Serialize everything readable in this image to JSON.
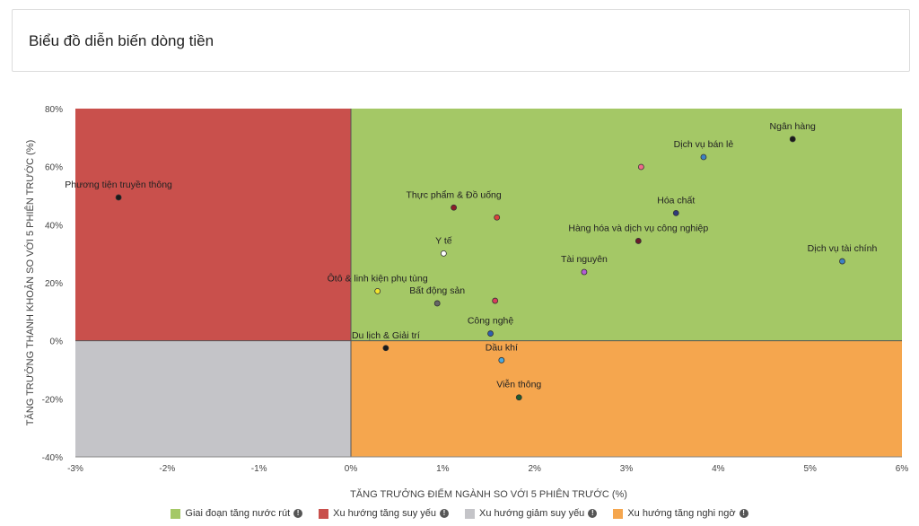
{
  "header": {
    "title": "Biểu đồ diễn biến dòng tiền"
  },
  "chart_data": {
    "type": "scatter",
    "xlabel": "TĂNG TRƯỞNG ĐIỂM NGÀNH SO VỚI 5 PHIÊN TRƯỚC (%)",
    "ylabel": "TĂNG TRƯỞNG THANH KHOẢN SO VỚI 5 PHIÊN TRƯỚC (%)",
    "xlim": [
      -3,
      6
    ],
    "ylim": [
      -40,
      80
    ],
    "x_ticks": [
      -3,
      -2,
      -1,
      0,
      1,
      2,
      3,
      4,
      5,
      6
    ],
    "y_ticks": [
      -40,
      -20,
      0,
      20,
      40,
      60,
      80
    ],
    "x_tick_labels": [
      "-3%",
      "-2%",
      "-1%",
      "0%",
      "1%",
      "2%",
      "3%",
      "4%",
      "5%",
      "6%"
    ],
    "y_tick_labels": [
      "-40%",
      "-20%",
      "0%",
      "20%",
      "40%",
      "60%",
      "80%"
    ],
    "quadrants": [
      {
        "name": "Giai đoạn tăng nước rút",
        "color": "#a4c866",
        "x_range": [
          0,
          6
        ],
        "y_range": [
          0,
          80
        ]
      },
      {
        "name": "Xu hướng tăng suy yếu",
        "color": "#c9504c",
        "x_range": [
          -3,
          0
        ],
        "y_range": [
          0,
          80
        ]
      },
      {
        "name": "Xu hướng giảm suy yếu",
        "color": "#c4c4c8",
        "x_range": [
          -3,
          0
        ],
        "y_range": [
          -40,
          0
        ]
      },
      {
        "name": "Xu hướng tăng nghi ngờ",
        "color": "#f5a64e",
        "x_range": [
          0,
          6
        ],
        "y_range": [
          -40,
          0
        ]
      }
    ],
    "points": [
      {
        "label": "Ngân hàng",
        "x": 4.81,
        "y": 69.5,
        "color": "#1a1a1a"
      },
      {
        "label": "Dịch vụ bán lẻ",
        "x": 3.84,
        "y": 63.3,
        "color": "#3d82c4"
      },
      {
        "label": "",
        "x": 3.16,
        "y": 59.9,
        "color": "#f06a8a"
      },
      {
        "label": "Phương tiện truyền thông",
        "x": -2.53,
        "y": 49.4,
        "color": "#1a1a1a"
      },
      {
        "label": "Thực phẩm & Đồ uống",
        "x": 1.12,
        "y": 45.9,
        "color": "#8b1c2a"
      },
      {
        "label": "",
        "x": 1.59,
        "y": 42.5,
        "color": "#d9443c"
      },
      {
        "label": "Hóa chất",
        "x": 3.54,
        "y": 44.0,
        "color": "#2f3a7a"
      },
      {
        "label": "Hàng hóa và dịch vụ công nghiệp",
        "x": 3.13,
        "y": 34.4,
        "color": "#6a1a2a"
      },
      {
        "label": "Y tế",
        "x": 1.01,
        "y": 30.1,
        "color": "#ffffff"
      },
      {
        "label": "Dịch vụ tài chính",
        "x": 5.35,
        "y": 27.4,
        "color": "#3d82c4"
      },
      {
        "label": "Tài nguyên",
        "x": 2.54,
        "y": 23.7,
        "color": "#b45cd6"
      },
      {
        "label": "Ôtô & linh kiện phụ tùng",
        "x": 0.29,
        "y": 17.1,
        "color": "#f2e52e"
      },
      {
        "label": "",
        "x": 1.57,
        "y": 13.8,
        "color": "#d93c5c"
      },
      {
        "label": "Bất động sản",
        "x": 0.94,
        "y": 12.9,
        "color": "#666666"
      },
      {
        "label": "Công nghệ",
        "x": 1.52,
        "y": 2.5,
        "color": "#2f5fb0"
      },
      {
        "label": "Du lịch & Giải trí",
        "x": 0.38,
        "y": -2.5,
        "color": "#1a1a1a"
      },
      {
        "label": "Dầu khí",
        "x": 1.64,
        "y": -6.7,
        "color": "#4aa8e0"
      },
      {
        "label": "Viễn thông",
        "x": 1.83,
        "y": -19.5,
        "color": "#1f5c2e"
      }
    ],
    "legend": [
      {
        "label": "Giai đoạn tăng nước rút",
        "color": "#a4c866"
      },
      {
        "label": "Xu hướng tăng suy yếu",
        "color": "#c9504c"
      },
      {
        "label": "Xu hướng giảm suy yếu",
        "color": "#c4c4c8"
      },
      {
        "label": "Xu hướng tăng nghi ngờ",
        "color": "#f5a64e"
      }
    ],
    "legend_placement": "bottom"
  },
  "icons": {
    "legend_info": "info-icon"
  }
}
